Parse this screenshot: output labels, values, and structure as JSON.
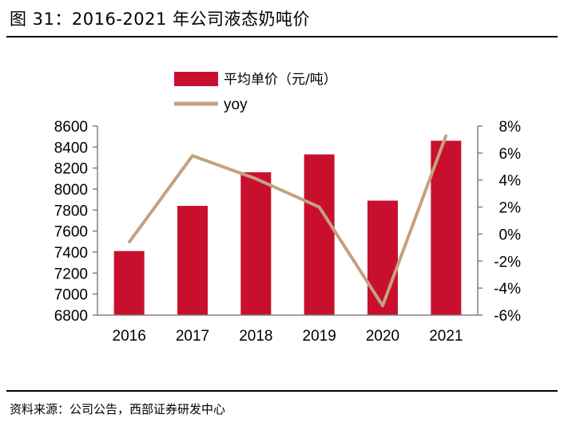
{
  "figure": {
    "title": "图 31：2016-2021 年公司液态奶吨价",
    "source": "资料来源：公司公告，西部证券研发中心"
  },
  "colors": {
    "bar": "#C8102E",
    "line": "#C4A27E",
    "axis": "#808080"
  },
  "chart_data": {
    "type": "bar",
    "categories": [
      "2016",
      "2017",
      "2018",
      "2019",
      "2020",
      "2021"
    ],
    "series": [
      {
        "name": "平均单价（元/吨）",
        "type": "bar",
        "axis": "left",
        "values": [
          7410,
          7840,
          8160,
          8330,
          7890,
          8460
        ]
      },
      {
        "name": "yoy",
        "type": "line",
        "axis": "right",
        "values": [
          -0.6,
          5.8,
          4.1,
          2.0,
          -5.3,
          7.3
        ]
      }
    ],
    "y_left": {
      "min": 6800,
      "max": 8600,
      "ticks": [
        "6800",
        "7000",
        "7200",
        "7400",
        "7600",
        "7800",
        "8000",
        "8200",
        "8400",
        "8600"
      ]
    },
    "y_right": {
      "min": -6,
      "max": 8,
      "ticks": [
        "-6%",
        "-4%",
        "-2%",
        "0%",
        "2%",
        "4%",
        "6%",
        "8%"
      ]
    },
    "legend_position": "top",
    "grid": false
  }
}
